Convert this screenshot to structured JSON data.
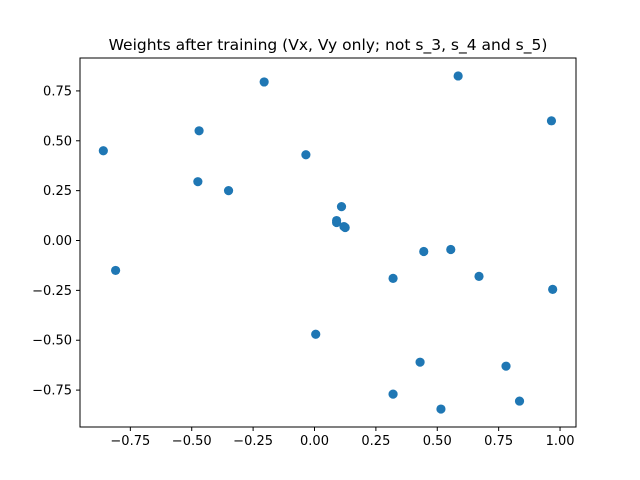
{
  "chart_data": {
    "type": "scatter",
    "title": "Weights after training (Vx, Vy only; not s_3, s_4 and s_5)",
    "xlabel": "",
    "ylabel": "",
    "xlim": [
      -0.955,
      1.065
    ],
    "ylim": [
      -0.935,
      0.915
    ],
    "xticks": [
      -0.75,
      -0.5,
      -0.25,
      0.0,
      0.25,
      0.5,
      0.75,
      1.0
    ],
    "xtick_labels": [
      "−0.75",
      "−0.50",
      "−0.25",
      "0.00",
      "0.25",
      "0.50",
      "0.75",
      "1.00"
    ],
    "yticks": [
      -0.75,
      -0.5,
      -0.25,
      0.0,
      0.25,
      0.5,
      0.75
    ],
    "ytick_labels": [
      "−0.75",
      "−0.50",
      "−0.25",
      "0.00",
      "0.25",
      "0.50",
      "0.75"
    ],
    "grid": false,
    "color": "#1f77b4",
    "points": [
      {
        "x": -0.86,
        "y": 0.45
      },
      {
        "x": -0.81,
        "y": -0.15
      },
      {
        "x": -0.47,
        "y": 0.55
      },
      {
        "x": -0.475,
        "y": 0.295
      },
      {
        "x": -0.35,
        "y": 0.25
      },
      {
        "x": -0.205,
        "y": 0.795
      },
      {
        "x": -0.035,
        "y": 0.43
      },
      {
        "x": 0.005,
        "y": -0.47
      },
      {
        "x": 0.09,
        "y": 0.1
      },
      {
        "x": 0.09,
        "y": 0.09
      },
      {
        "x": 0.11,
        "y": 0.17
      },
      {
        "x": 0.12,
        "y": 0.07
      },
      {
        "x": 0.125,
        "y": 0.065
      },
      {
        "x": 0.32,
        "y": -0.19
      },
      {
        "x": 0.32,
        "y": -0.77
      },
      {
        "x": 0.43,
        "y": -0.61
      },
      {
        "x": 0.445,
        "y": -0.055
      },
      {
        "x": 0.515,
        "y": -0.845
      },
      {
        "x": 0.555,
        "y": -0.045
      },
      {
        "x": 0.585,
        "y": 0.825
      },
      {
        "x": 0.67,
        "y": -0.18
      },
      {
        "x": 0.78,
        "y": -0.63
      },
      {
        "x": 0.835,
        "y": -0.805
      },
      {
        "x": 0.965,
        "y": 0.6
      },
      {
        "x": 0.97,
        "y": -0.245
      }
    ]
  }
}
